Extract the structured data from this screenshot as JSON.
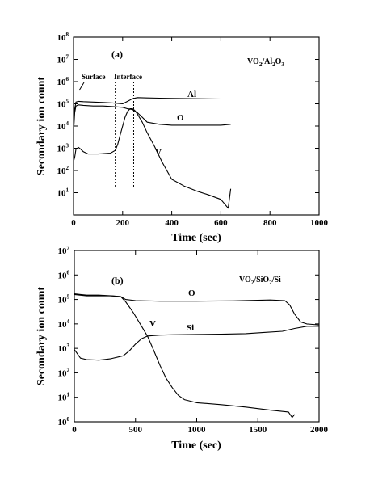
{
  "chart_data": [
    {
      "type": "line",
      "panel_label": "(a)",
      "system_label": "VO2/Al2O3",
      "xlabel": "Time (sec)",
      "ylabel": "Secondary ion count",
      "xlim": [
        0,
        1000
      ],
      "ylim": [
        1,
        100000000
      ],
      "yscale": "log",
      "x_ticks": [
        0,
        200,
        400,
        600,
        800,
        1000
      ],
      "y_tick_exponents": [
        1,
        2,
        3,
        4,
        5,
        6,
        7,
        8
      ],
      "annotations": [
        {
          "text": "Surface",
          "x": 30,
          "y": 180000
        },
        {
          "text": "Interface",
          "x": 170,
          "y": 180000
        }
      ],
      "interface_lines_x": [
        170,
        245
      ],
      "series": [
        {
          "name": "Al",
          "x": [
            0,
            5,
            10,
            20,
            40,
            80,
            120,
            160,
            200,
            220,
            240,
            260,
            300,
            350,
            400,
            500,
            600,
            640
          ],
          "y": [
            10000,
            60000,
            120000,
            130000,
            125000,
            120000,
            115000,
            110000,
            100000,
            130000,
            170000,
            190000,
            185000,
            180000,
            175000,
            170000,
            165000,
            165000
          ]
        },
        {
          "name": "O",
          "x": [
            0,
            5,
            10,
            20,
            40,
            80,
            120,
            160,
            200,
            220,
            240,
            260,
            280,
            300,
            350,
            400,
            500,
            600,
            640
          ],
          "y": [
            5000,
            40000,
            80000,
            90000,
            85000,
            80000,
            80000,
            75000,
            70000,
            60000,
            55000,
            40000,
            25000,
            15000,
            12000,
            11000,
            11000,
            11000,
            12000
          ]
        },
        {
          "name": "V",
          "x": [
            0,
            5,
            10,
            20,
            30,
            40,
            60,
            100,
            150,
            170,
            180,
            190,
            200,
            210,
            220,
            230,
            240,
            250,
            260,
            280,
            300,
            330,
            360,
            400,
            450,
            500,
            550,
            600,
            630,
            640
          ],
          "y": [
            250,
            400,
            900,
            1100,
            900,
            700,
            550,
            550,
            600,
            800,
            1500,
            4000,
            10000,
            25000,
            45000,
            60000,
            60000,
            50000,
            35000,
            15000,
            5000,
            1200,
            250,
            40,
            20,
            12,
            8,
            5,
            2,
            15
          ]
        }
      ]
    },
    {
      "type": "line",
      "panel_label": "(b)",
      "system_label": "VO2/SiO2/Si",
      "xlabel": "Time (sec)",
      "ylabel": "Secondary ion count",
      "xlim": [
        0,
        2000
      ],
      "ylim": [
        1,
        10000000
      ],
      "yscale": "log",
      "x_ticks": [
        0,
        500,
        1000,
        1500,
        2000
      ],
      "y_tick_exponents": [
        0,
        1,
        2,
        3,
        4,
        5,
        6,
        7
      ],
      "series": [
        {
          "name": "O",
          "x": [
            0,
            100,
            200,
            300,
            380,
            420,
            500,
            700,
            1000,
            1300,
            1600,
            1720,
            1760,
            1800,
            1850,
            1900,
            2000
          ],
          "y": [
            160000,
            140000,
            140000,
            140000,
            130000,
            100000,
            90000,
            85000,
            85000,
            88000,
            95000,
            90000,
            60000,
            25000,
            12000,
            10000,
            9000
          ]
        },
        {
          "name": "Si",
          "x": [
            0,
            50,
            100,
            200,
            300,
            400,
            450,
            500,
            550,
            600,
            700,
            800,
            1000,
            1200,
            1400,
            1550,
            1700,
            1800,
            1900,
            2000
          ],
          "y": [
            900,
            400,
            350,
            330,
            380,
            500,
            800,
            1500,
            2500,
            3200,
            3500,
            3600,
            3700,
            3800,
            4000,
            4500,
            5000,
            6500,
            8000,
            8000
          ]
        },
        {
          "name": "V",
          "x": [
            0,
            50,
            100,
            200,
            300,
            380,
            420,
            480,
            550,
            600,
            650,
            700,
            750,
            800,
            850,
            900,
            1000,
            1200,
            1400,
            1600,
            1750,
            1780,
            1800
          ],
          "y": [
            170000,
            160000,
            150000,
            150000,
            140000,
            130000,
            80000,
            30000,
            8000,
            3000,
            800,
            200,
            60,
            25,
            12,
            8,
            6,
            5,
            4,
            3,
            2.5,
            1.5,
            2
          ]
        }
      ]
    }
  ]
}
